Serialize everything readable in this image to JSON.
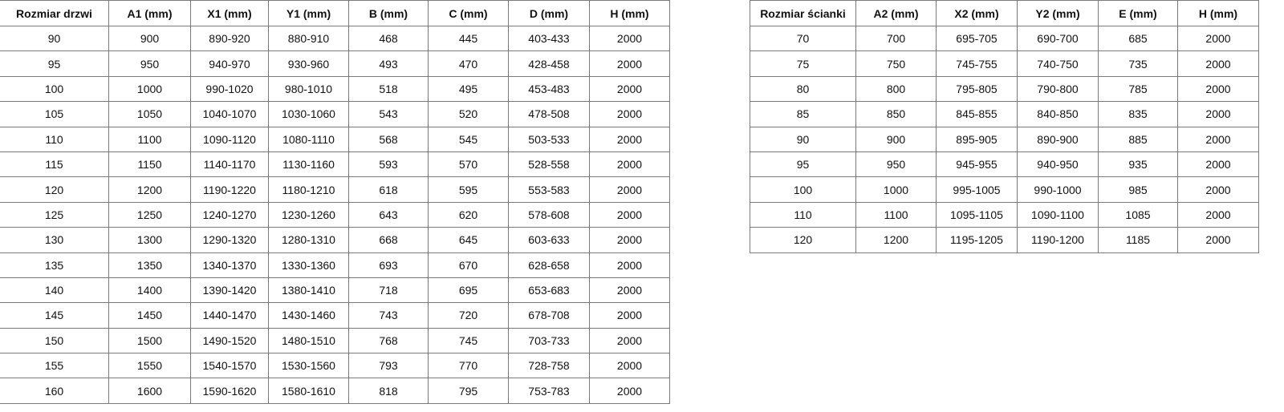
{
  "door_table": {
    "headers": [
      "Rozmiar drzwi",
      "A1 (mm)",
      "X1 (mm)",
      "Y1 (mm)",
      "B (mm)",
      "C (mm)",
      "D (mm)",
      "H (mm)"
    ],
    "rows": [
      [
        "90",
        "900",
        "890-920",
        "880-910",
        "468",
        "445",
        "403-433",
        "2000"
      ],
      [
        "95",
        "950",
        "940-970",
        "930-960",
        "493",
        "470",
        "428-458",
        "2000"
      ],
      [
        "100",
        "1000",
        "990-1020",
        "980-1010",
        "518",
        "495",
        "453-483",
        "2000"
      ],
      [
        "105",
        "1050",
        "1040-1070",
        "1030-1060",
        "543",
        "520",
        "478-508",
        "2000"
      ],
      [
        "110",
        "1100",
        "1090-1120",
        "1080-1110",
        "568",
        "545",
        "503-533",
        "2000"
      ],
      [
        "115",
        "1150",
        "1140-1170",
        "1130-1160",
        "593",
        "570",
        "528-558",
        "2000"
      ],
      [
        "120",
        "1200",
        "1190-1220",
        "1180-1210",
        "618",
        "595",
        "553-583",
        "2000"
      ],
      [
        "125",
        "1250",
        "1240-1270",
        "1230-1260",
        "643",
        "620",
        "578-608",
        "2000"
      ],
      [
        "130",
        "1300",
        "1290-1320",
        "1280-1310",
        "668",
        "645",
        "603-633",
        "2000"
      ],
      [
        "135",
        "1350",
        "1340-1370",
        "1330-1360",
        "693",
        "670",
        "628-658",
        "2000"
      ],
      [
        "140",
        "1400",
        "1390-1420",
        "1380-1410",
        "718",
        "695",
        "653-683",
        "2000"
      ],
      [
        "145",
        "1450",
        "1440-1470",
        "1430-1460",
        "743",
        "720",
        "678-708",
        "2000"
      ],
      [
        "150",
        "1500",
        "1490-1520",
        "1480-1510",
        "768",
        "745",
        "703-733",
        "2000"
      ],
      [
        "155",
        "1550",
        "1540-1570",
        "1530-1560",
        "793",
        "770",
        "728-758",
        "2000"
      ],
      [
        "160",
        "1600",
        "1590-1620",
        "1580-1610",
        "818",
        "795",
        "753-783",
        "2000"
      ]
    ]
  },
  "wall_table": {
    "headers": [
      "Rozmiar ścianki",
      "A2 (mm)",
      "X2 (mm)",
      "Y2 (mm)",
      "E (mm)",
      "H (mm)"
    ],
    "rows": [
      [
        "70",
        "700",
        "695-705",
        "690-700",
        "685",
        "2000"
      ],
      [
        "75",
        "750",
        "745-755",
        "740-750",
        "735",
        "2000"
      ],
      [
        "80",
        "800",
        "795-805",
        "790-800",
        "785",
        "2000"
      ],
      [
        "85",
        "850",
        "845-855",
        "840-850",
        "835",
        "2000"
      ],
      [
        "90",
        "900",
        "895-905",
        "890-900",
        "885",
        "2000"
      ],
      [
        "95",
        "950",
        "945-955",
        "940-950",
        "935",
        "2000"
      ],
      [
        "100",
        "1000",
        "995-1005",
        "990-1000",
        "985",
        "2000"
      ],
      [
        "110",
        "1100",
        "1095-1105",
        "1090-1100",
        "1085",
        "2000"
      ],
      [
        "120",
        "1200",
        "1195-1205",
        "1190-1200",
        "1185",
        "2000"
      ]
    ]
  }
}
